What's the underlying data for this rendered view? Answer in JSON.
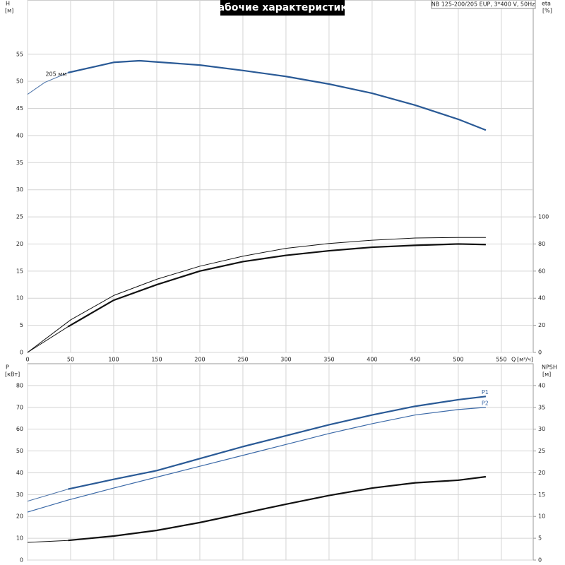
{
  "title": "Рабочие характеристики",
  "info": "NB 125-200/205 EUP, 3*400 V, 50Hz",
  "chart_data": [
    {
      "type": "line",
      "ylabel": "H",
      "yunit": "[м]",
      "y2label": "eta",
      "y2unit": "[%]",
      "xlabel": "Q",
      "xunit": "[м³/ч]",
      "xlim": [
        0,
        587
      ],
      "xticks": [
        0,
        50,
        100,
        150,
        200,
        250,
        300,
        350,
        400,
        450,
        500,
        550
      ],
      "ylim": [
        0,
        65
      ],
      "yticks": [
        0,
        5,
        10,
        15,
        20,
        25,
        30,
        35,
        40,
        45,
        50,
        55
      ],
      "y2lim": [
        0,
        260
      ],
      "y2ticks": [
        0,
        20,
        40,
        60,
        80,
        100
      ],
      "grid": true,
      "series": [
        {
          "color": "#4a72a8",
          "line_width": 1,
          "x": [
            0,
            20,
            47
          ],
          "values": [
            47.6,
            49.8,
            51.6
          ]
        },
        {
          "name": "205 мм",
          "label_position": "start",
          "color": "#2a5a96",
          "line_width": 2.2,
          "x": [
            47,
            100,
            130,
            200,
            250,
            300,
            350,
            400,
            450,
            500,
            532
          ],
          "values": [
            51.6,
            53.5,
            53.8,
            53.0,
            52.0,
            50.9,
            49.5,
            47.8,
            45.6,
            43.0,
            41.0
          ]
        },
        {
          "color": "#111111",
          "line_width": 1,
          "axis": "y2",
          "x": [
            0,
            50,
            100,
            150,
            200,
            250,
            300,
            350,
            400,
            450,
            500,
            532
          ],
          "values": [
            0,
            24,
            42,
            54,
            63.6,
            71,
            76.8,
            80.4,
            82.8,
            84.4,
            84.8,
            84.8
          ]
        },
        {
          "color": "#111111",
          "line_width": 1,
          "axis": "y2",
          "x": [
            0,
            47
          ],
          "values": [
            0,
            19
          ]
        },
        {
          "color": "#111111",
          "line_width": 2.2,
          "axis": "y2",
          "x": [
            47,
            100,
            150,
            200,
            250,
            300,
            350,
            400,
            450,
            500,
            532
          ],
          "values": [
            19,
            38.5,
            50,
            60,
            67,
            71.6,
            75,
            77.6,
            79,
            80,
            79.6
          ]
        }
      ]
    },
    {
      "type": "line",
      "ylabel": "P",
      "yunit": "[кВт]",
      "y2label": "NPSH",
      "y2unit": "[м]",
      "xlim": [
        0,
        587
      ],
      "ylim": [
        0,
        90
      ],
      "yticks": [
        0,
        10,
        20,
        30,
        40,
        50,
        60,
        70,
        80
      ],
      "y2lim": [
        0,
        45
      ],
      "y2ticks": [
        0,
        5,
        10,
        15,
        20,
        25,
        30,
        35,
        40
      ],
      "grid": true,
      "series": [
        {
          "color": "#4a72a8",
          "line_width": 1,
          "x": [
            0,
            47
          ],
          "values": [
            27,
            32.5
          ]
        },
        {
          "name": "P1",
          "label_position": "end",
          "color": "#2a5a96",
          "line_width": 2.2,
          "x": [
            47,
            100,
            150,
            200,
            250,
            300,
            350,
            400,
            450,
            500,
            532
          ],
          "values": [
            32.5,
            37,
            41,
            46.5,
            52,
            57,
            62,
            66.5,
            70.5,
            73.5,
            75
          ]
        },
        {
          "name": "P2",
          "label_position": "end",
          "color": "#3c6aa8",
          "line_width": 1.2,
          "x": [
            0,
            47,
            100,
            150,
            200,
            250,
            300,
            350,
            400,
            450,
            500,
            532
          ],
          "values": [
            22,
            27.5,
            33,
            38,
            43,
            48,
            53,
            58,
            62.5,
            66.5,
            69,
            70
          ]
        },
        {
          "color": "#111111",
          "line_width": 1,
          "axis": "y2",
          "x": [
            0,
            47
          ],
          "values": [
            4.05,
            4.5
          ]
        },
        {
          "color": "#111111",
          "line_width": 2.2,
          "axis": "y2",
          "x": [
            47,
            100,
            150,
            200,
            250,
            300,
            350,
            400,
            450,
            500,
            532
          ],
          "values": [
            4.5,
            5.5,
            6.8,
            8.6,
            10.7,
            12.8,
            14.8,
            16.5,
            17.7,
            18.3,
            19.1
          ]
        }
      ]
    }
  ]
}
